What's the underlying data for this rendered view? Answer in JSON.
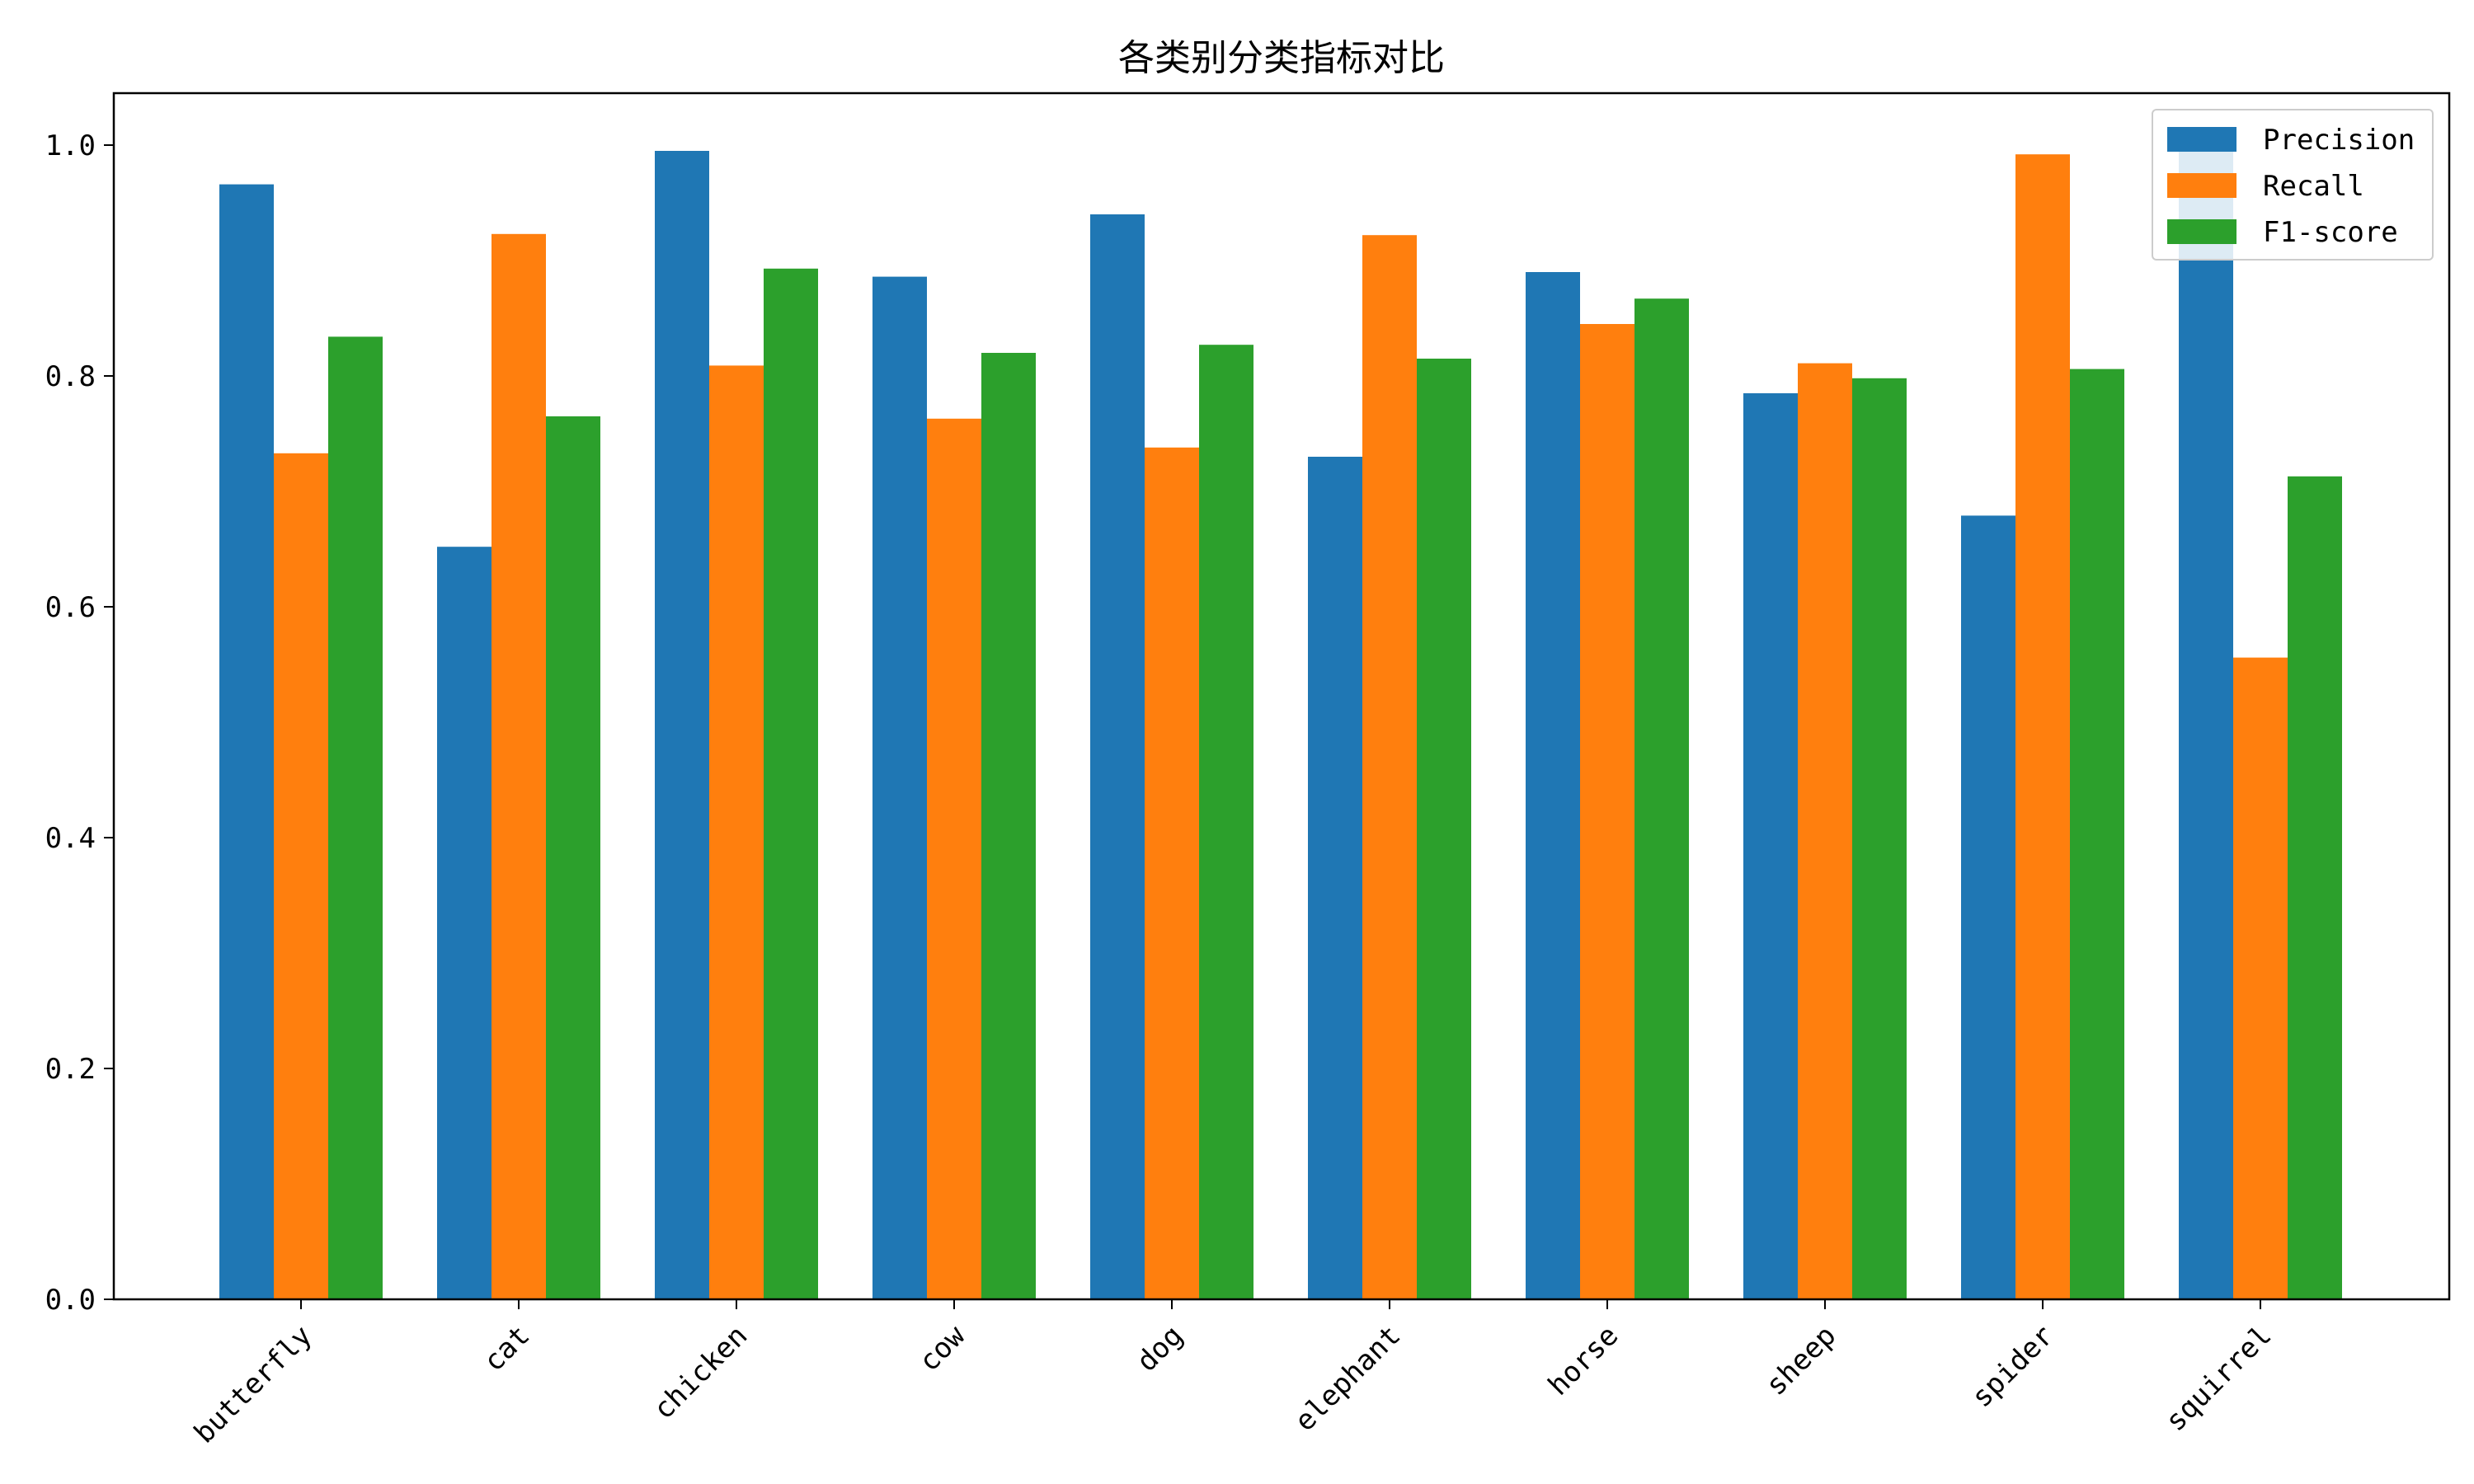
{
  "chart_data": {
    "type": "bar",
    "title": "各类别分类指标对比",
    "xlabel": "",
    "ylabel": "",
    "categories": [
      "butterfly",
      "cat",
      "chicken",
      "cow",
      "dog",
      "elephant",
      "horse",
      "sheep",
      "spider",
      "squirrel"
    ],
    "series": [
      {
        "name": "Precision",
        "color": "#1f77b4",
        "values": [
          0.966,
          0.652,
          0.995,
          0.886,
          0.94,
          0.73,
          0.89,
          0.785,
          0.679,
          0.998
        ]
      },
      {
        "name": "Recall",
        "color": "#ff7f0e",
        "values": [
          0.733,
          0.923,
          0.809,
          0.763,
          0.738,
          0.922,
          0.845,
          0.811,
          0.992,
          0.556
        ]
      },
      {
        "name": "F1-score",
        "color": "#2ca02c",
        "values": [
          0.834,
          0.765,
          0.893,
          0.82,
          0.827,
          0.815,
          0.867,
          0.798,
          0.806,
          0.713
        ]
      }
    ],
    "ylim": [
      0,
      1.045
    ],
    "yticks": [
      "0.0",
      "0.2",
      "0.4",
      "0.6",
      "0.8",
      "1.0"
    ],
    "grid": false,
    "legend": "top-right"
  }
}
